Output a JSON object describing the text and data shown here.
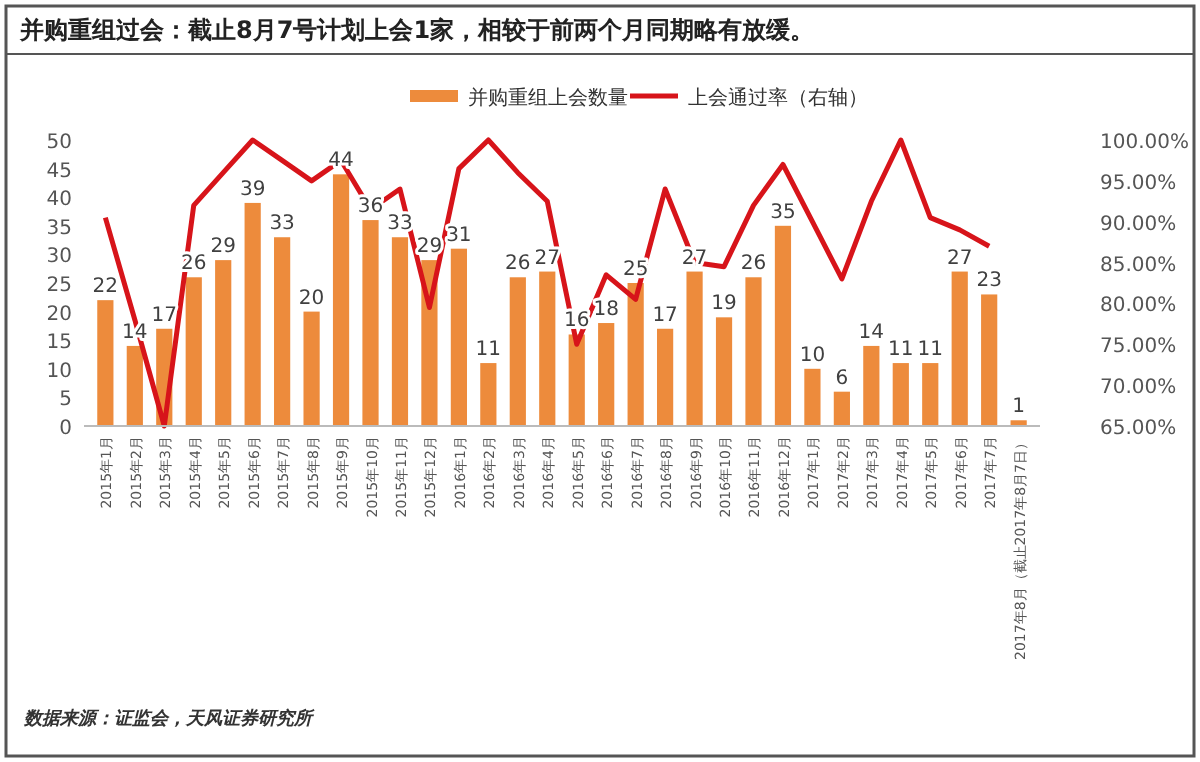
{
  "chart_data": {
    "type": "bar",
    "title": "并购重组过会：截止8月7号计划上会1家，相较于前两个月同期略有放缓。",
    "categories": [
      "2015年1月",
      "2015年2月",
      "2015年3月",
      "2015年4月",
      "2015年5月",
      "2015年6月",
      "2015年7月",
      "2015年8月",
      "2015年9月",
      "2015年10月",
      "2015年11月",
      "2015年12月",
      "2016年1月",
      "2016年2月",
      "2016年3月",
      "2016年4月",
      "2016年5月",
      "2016年6月",
      "2016年7月",
      "2016年8月",
      "2016年9月",
      "2016年10月",
      "2016年11月",
      "2016年12月",
      "2017年1月",
      "2017年2月",
      "2017年3月",
      "2017年4月",
      "2017年5月",
      "2017年6月",
      "2017年7月",
      "2017年8月（截止2017年8月7日）"
    ],
    "series": [
      {
        "name": "并购重组上会数量",
        "color": "#ed8b3c",
        "data_labels": true,
        "values": [
          22,
          14,
          17,
          26,
          29,
          39,
          33,
          20,
          44,
          36,
          33,
          29,
          31,
          11,
          26,
          27,
          16,
          18,
          25,
          17,
          27,
          19,
          26,
          35,
          10,
          6,
          14,
          11,
          11,
          27,
          23,
          1
        ]
      },
      {
        "name": "上会通过率（右轴）",
        "type": "line",
        "axis": "y2",
        "color": "#d7141a",
        "values": [
          90.5,
          78,
          65,
          92,
          96,
          100,
          97.5,
          95,
          97.5,
          91.5,
          94,
          79.5,
          96.5,
          100,
          96,
          92.5,
          75,
          83.5,
          80.5,
          94,
          85,
          84.5,
          92,
          97,
          90,
          83,
          92.5,
          100,
          90.5,
          89,
          87,
          null
        ]
      }
    ],
    "ylim": [
      0,
      50
    ],
    "yticks": [
      0,
      5,
      10,
      15,
      20,
      25,
      30,
      35,
      40,
      45,
      50
    ],
    "y2lim": [
      65,
      100
    ],
    "y2ticks": [
      {
        "value": 65,
        "label": "65.00%"
      },
      {
        "value": 70,
        "label": "70.00%"
      },
      {
        "value": 75,
        "label": "75.00%"
      },
      {
        "value": 80,
        "label": "80.00%"
      },
      {
        "value": 85,
        "label": "85.00%"
      },
      {
        "value": 90,
        "label": "90.00%"
      },
      {
        "value": 95,
        "label": "95.00%"
      },
      {
        "value": 100,
        "label": "100.00%"
      }
    ],
    "legend": "top",
    "grid": false,
    "annotations": [
      "数据来源：证监会，天风证券研究所"
    ]
  }
}
